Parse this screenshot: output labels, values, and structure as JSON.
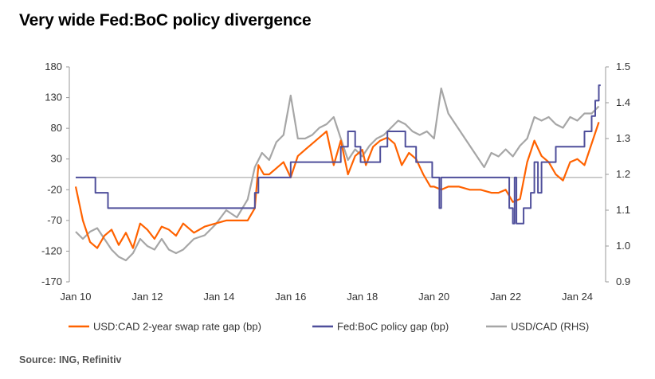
{
  "title": "Very wide Fed:BoC policy divergence",
  "source": "Source: ING, Refinitiv",
  "chart_data": {
    "type": "line",
    "title": "Very wide Fed:BoC policy divergence",
    "x_ticks": [
      "Jan 10",
      "Jan 12",
      "Jan 14",
      "Jan 16",
      "Jan 18",
      "Jan 20",
      "Jan 22",
      "Jan 24"
    ],
    "x_range": [
      2010.0,
      2024.7
    ],
    "ylim_left": [
      -170,
      180
    ],
    "y_ticks_left": [
      180,
      130,
      80,
      30,
      -20,
      -70,
      -120,
      -170
    ],
    "ylim_right": [
      0.9,
      1.5
    ],
    "y_ticks_right": [
      1.5,
      1.4,
      1.3,
      1.2,
      1.1,
      1.0,
      0.9
    ],
    "zero_line": 0,
    "grid": false,
    "legend_position": "bottom",
    "series": [
      {
        "name": "USD:CAD 2-year swap rate gap (bp)",
        "axis": "left",
        "color": "#ff6200",
        "x": [
          2010.0,
          2010.2,
          2010.4,
          2010.6,
          2010.8,
          2011.0,
          2011.2,
          2011.4,
          2011.6,
          2011.8,
          2012.0,
          2012.2,
          2012.4,
          2012.6,
          2012.8,
          2013.0,
          2013.3,
          2013.6,
          2013.9,
          2014.2,
          2014.5,
          2014.8,
          2015.0,
          2015.1,
          2015.25,
          2015.4,
          2015.6,
          2015.8,
          2016.0,
          2016.2,
          2016.4,
          2016.6,
          2016.8,
          2017.0,
          2017.2,
          2017.4,
          2017.6,
          2017.8,
          2018.0,
          2018.1,
          2018.3,
          2018.5,
          2018.7,
          2018.9,
          2019.1,
          2019.3,
          2019.5,
          2019.7,
          2019.9,
          2020.0,
          2020.2,
          2020.4,
          2020.7,
          2021.0,
          2021.3,
          2021.6,
          2021.8,
          2022.0,
          2022.2,
          2022.4,
          2022.6,
          2022.8,
          2023.0,
          2023.2,
          2023.4,
          2023.6,
          2023.8,
          2024.0,
          2024.2,
          2024.4,
          2024.6
        ],
        "values": [
          -15,
          -70,
          -105,
          -115,
          -95,
          -85,
          -110,
          -90,
          -115,
          -75,
          -85,
          -100,
          -80,
          -85,
          -95,
          -75,
          -90,
          -80,
          -75,
          -70,
          -70,
          -70,
          -50,
          20,
          5,
          5,
          15,
          25,
          0,
          35,
          45,
          55,
          65,
          75,
          20,
          60,
          5,
          35,
          45,
          20,
          50,
          60,
          65,
          55,
          20,
          40,
          30,
          5,
          -15,
          -15,
          -20,
          -15,
          -15,
          -20,
          -20,
          -25,
          -25,
          -20,
          -40,
          -35,
          25,
          60,
          35,
          25,
          5,
          -5,
          25,
          30,
          20,
          55,
          90
        ]
      },
      {
        "name": "Fed:BoC policy gap (bp)",
        "axis": "left",
        "color": "#4f4f9b",
        "x": [
          2010.0,
          2010.45,
          2010.55,
          2010.7,
          2010.9,
          2014.0,
          2014.3,
          2014.6,
          2015.0,
          2015.1,
          2015.5,
          2015.9,
          2016.0,
          2016.4,
          2016.9,
          2017.4,
          2017.5,
          2017.6,
          2017.8,
          2017.95,
          2018.2,
          2018.5,
          2018.7,
          2018.9,
          2019.2,
          2019.5,
          2019.7,
          2019.95,
          2020.1,
          2020.15,
          2020.2,
          2022.0,
          2022.1,
          2022.2,
          2022.25,
          2022.3,
          2022.5,
          2022.7,
          2022.8,
          2022.9,
          2023.0,
          2023.2,
          2023.4,
          2023.6,
          2024.0,
          2024.2,
          2024.3,
          2024.4,
          2024.5,
          2024.6
        ],
        "values": [
          0,
          0,
          -25,
          -25,
          -50,
          -50,
          -50,
          -50,
          -25,
          0,
          0,
          0,
          25,
          25,
          25,
          50,
          50,
          75,
          50,
          25,
          25,
          50,
          75,
          75,
          50,
          25,
          25,
          0,
          0,
          -50,
          0,
          0,
          -50,
          -75,
          0,
          -75,
          -50,
          -25,
          25,
          -25,
          25,
          25,
          50,
          50,
          50,
          75,
          75,
          100,
          125,
          150
        ]
      },
      {
        "name": "USD/CAD (RHS)",
        "axis": "right",
        "color": "#a6a6a6",
        "x": [
          2010.0,
          2010.2,
          2010.4,
          2010.6,
          2010.8,
          2011.0,
          2011.2,
          2011.4,
          2011.6,
          2011.8,
          2012.0,
          2012.2,
          2012.4,
          2012.6,
          2012.8,
          2013.0,
          2013.3,
          2013.6,
          2013.9,
          2014.2,
          2014.5,
          2014.8,
          2015.0,
          2015.2,
          2015.4,
          2015.6,
          2015.8,
          2016.0,
          2016.2,
          2016.4,
          2016.6,
          2016.8,
          2017.0,
          2017.2,
          2017.4,
          2017.6,
          2017.8,
          2018.0,
          2018.2,
          2018.4,
          2018.6,
          2018.8,
          2019.0,
          2019.2,
          2019.4,
          2019.6,
          2019.8,
          2020.0,
          2020.2,
          2020.4,
          2020.6,
          2020.8,
          2021.0,
          2021.2,
          2021.4,
          2021.6,
          2021.8,
          2022.0,
          2022.2,
          2022.4,
          2022.6,
          2022.8,
          2023.0,
          2023.2,
          2023.4,
          2023.6,
          2023.8,
          2024.0,
          2024.2,
          2024.4,
          2024.6
        ],
        "values": [
          1.04,
          1.02,
          1.04,
          1.05,
          1.02,
          0.99,
          0.97,
          0.96,
          0.98,
          1.02,
          1.0,
          0.99,
          1.02,
          0.99,
          0.98,
          0.99,
          1.02,
          1.03,
          1.06,
          1.1,
          1.08,
          1.13,
          1.22,
          1.26,
          1.24,
          1.29,
          1.31,
          1.42,
          1.3,
          1.3,
          1.31,
          1.33,
          1.34,
          1.36,
          1.3,
          1.24,
          1.27,
          1.25,
          1.28,
          1.3,
          1.31,
          1.33,
          1.35,
          1.34,
          1.32,
          1.31,
          1.32,
          1.3,
          1.44,
          1.37,
          1.34,
          1.31,
          1.28,
          1.25,
          1.22,
          1.26,
          1.25,
          1.27,
          1.25,
          1.28,
          1.3,
          1.36,
          1.35,
          1.36,
          1.34,
          1.33,
          1.36,
          1.35,
          1.37,
          1.37,
          1.39
        ]
      }
    ]
  }
}
